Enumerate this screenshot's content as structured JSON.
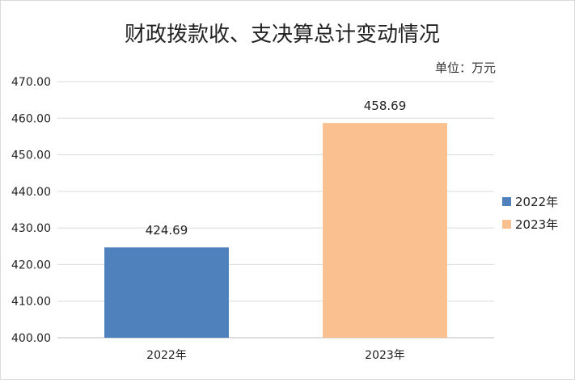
{
  "chart_data": {
    "type": "bar",
    "title": "财政拨款收、支决算总计变动情况",
    "unit_label": "单位：万元",
    "categories": [
      "2022年",
      "2023年"
    ],
    "values": [
      424.69,
      458.69
    ],
    "data_labels": [
      "424.69",
      "458.69"
    ],
    "colors": [
      "#4f81bd",
      "#fac090"
    ],
    "ylim": [
      400,
      470
    ],
    "yticks": [
      400,
      410,
      420,
      430,
      440,
      450,
      460,
      470
    ],
    "ytick_labels": [
      "400.00",
      "410.00",
      "420.00",
      "430.00",
      "440.00",
      "450.00",
      "460.00",
      "470.00"
    ],
    "grid": true,
    "legend": {
      "placement": "right",
      "entries": [
        "2022年",
        "2023年"
      ]
    }
  }
}
